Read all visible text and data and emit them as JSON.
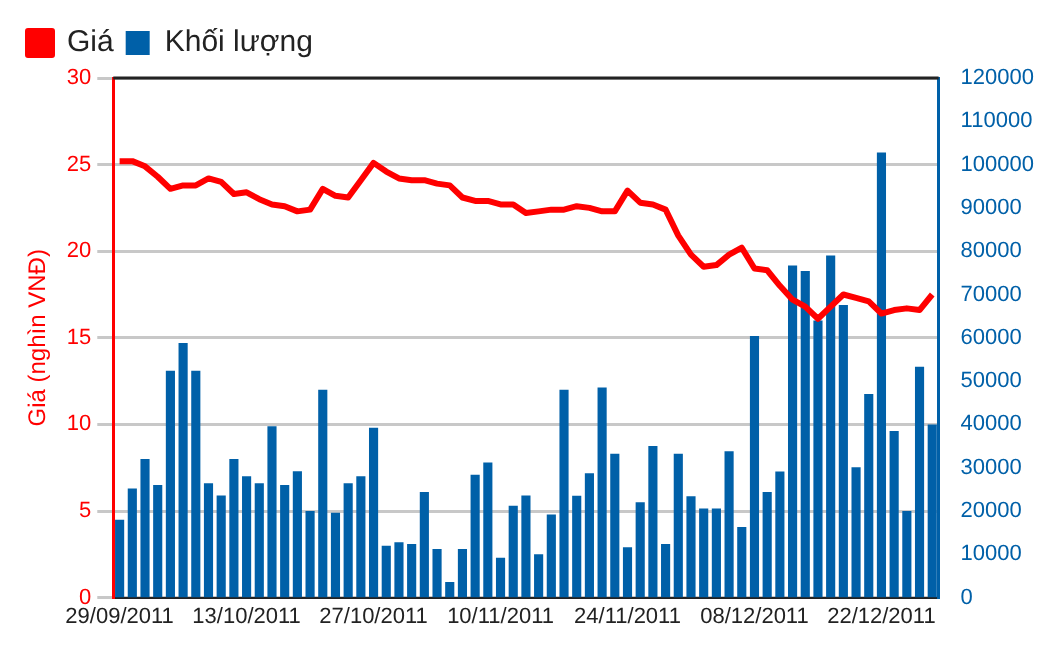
{
  "chart_data": {
    "type": "bar",
    "ylabel": "Giá (nghìn VNĐ)",
    "legend": "top left",
    "grid": "y",
    "categories": [
      "29/09/2011",
      null,
      null,
      null,
      null,
      null,
      null,
      null,
      null,
      null,
      "13/10/2011",
      null,
      null,
      null,
      null,
      null,
      null,
      null,
      null,
      null,
      "27/10/2011",
      null,
      null,
      null,
      null,
      null,
      null,
      null,
      null,
      null,
      "10/11/2011",
      null,
      null,
      null,
      null,
      null,
      null,
      null,
      null,
      null,
      "24/11/2011",
      null,
      null,
      null,
      null,
      null,
      null,
      null,
      null,
      null,
      "08/12/2011",
      null,
      null,
      null,
      null,
      null,
      null,
      null,
      null,
      null,
      "22/12/2011",
      null,
      null,
      null,
      null
    ],
    "series": [
      {
        "name": "Giá",
        "type": "line",
        "color": "#ff0000",
        "marker": "none",
        "values": [
          25.2,
          25.2,
          24.9,
          24.3,
          23.6,
          23.8,
          23.8,
          24.2,
          24.0,
          23.3,
          23.4,
          23.0,
          22.7,
          22.6,
          22.3,
          22.4,
          23.6,
          23.2,
          23.1,
          24.1,
          25.1,
          24.6,
          24.2,
          24.1,
          24.1,
          23.9,
          23.8,
          23.1,
          22.9,
          22.9,
          22.7,
          22.7,
          22.2,
          22.3,
          22.4,
          22.4,
          22.6,
          22.5,
          22.3,
          22.3,
          23.5,
          22.8,
          22.7,
          22.4,
          20.9,
          19.8,
          19.1,
          19.2,
          19.8,
          20.2,
          19.0,
          18.9,
          18.0,
          17.2,
          16.8,
          16.1,
          16.8,
          17.5,
          17.3,
          17.1,
          16.4,
          16.6,
          16.7,
          16.6,
          17.5
        ]
      },
      {
        "name": "Khối lượng",
        "axis": "y2",
        "color": "#0060a8",
        "values": [
          18000,
          25200,
          32000,
          26000,
          52400,
          58800,
          52400,
          26400,
          23600,
          32000,
          28000,
          26400,
          39600,
          26000,
          29200,
          20000,
          48000,
          19600,
          26400,
          28000,
          39200,
          12000,
          12800,
          12400,
          24400,
          11200,
          3600,
          11200,
          28400,
          31200,
          9200,
          21200,
          23600,
          10000,
          19200,
          48000,
          23500,
          28700,
          48500,
          33200,
          11600,
          22000,
          35000,
          12400,
          33200,
          23400,
          20600,
          20600,
          33800,
          16300,
          60400,
          24400,
          29100,
          76700,
          75400,
          64000,
          79000,
          67600,
          30100,
          47000,
          102800,
          38500,
          20000,
          53300,
          40000
        ]
      }
    ],
    "ylim": [
      0,
      30
    ],
    "yticks": [
      0,
      5,
      10,
      15,
      20,
      25,
      30
    ],
    "y2lim": [
      0,
      120000
    ],
    "y2ticks": [
      0,
      10000,
      20000,
      30000,
      40000,
      50000,
      60000,
      70000,
      80000,
      90000,
      100000,
      110000,
      120000
    ]
  }
}
